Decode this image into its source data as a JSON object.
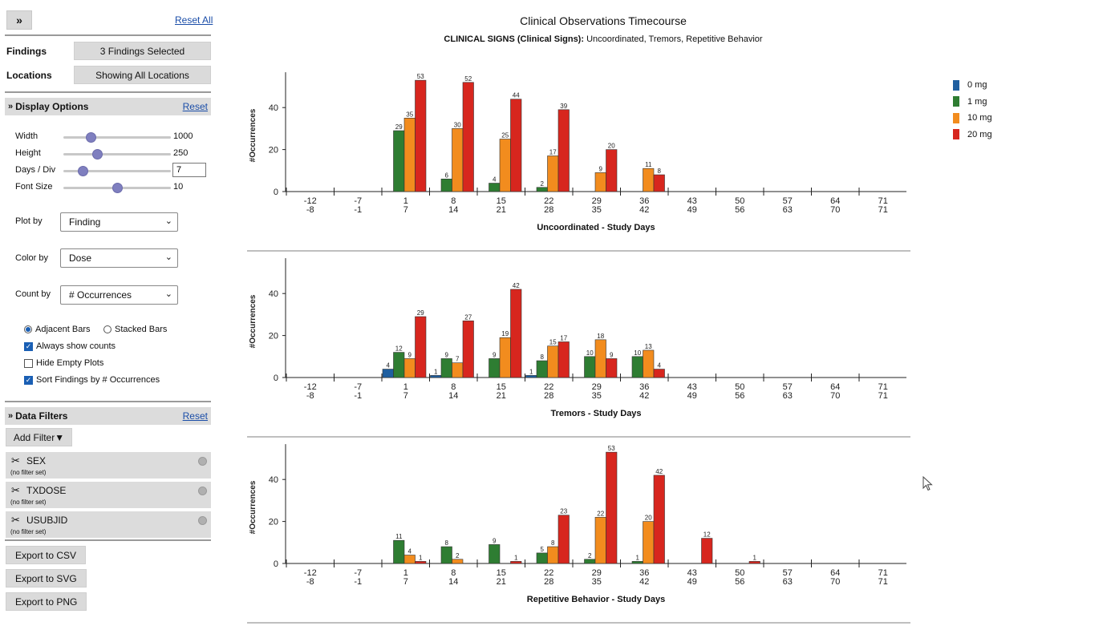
{
  "sidebar": {
    "reset_all": "Reset All",
    "findings_label": "Findings",
    "findings_value": "3 Findings Selected",
    "locations_label": "Locations",
    "locations_value": "Showing All Locations",
    "display_options": {
      "title": "Display Options",
      "reset": "Reset",
      "sliders": [
        {
          "label": "Width",
          "value": "1000",
          "fraction": 0.25
        },
        {
          "label": "Height",
          "value": "250",
          "fraction": 0.31
        },
        {
          "label": "Days / Div",
          "value": "7",
          "fraction": 0.18
        },
        {
          "label": "Font Size",
          "value": "10",
          "fraction": 0.5
        }
      ],
      "plot_by": {
        "label": "Plot by",
        "value": "Finding"
      },
      "color_by": {
        "label": "Color by",
        "value": "Dose"
      },
      "count_by": {
        "label": "Count by",
        "value": "# Occurrences"
      },
      "adjacent_bars": "Adjacent Bars",
      "stacked_bars": "Stacked Bars",
      "always_show_counts": "Always show counts",
      "hide_empty_plots": "Hide Empty Plots",
      "sort_findings": "Sort Findings by # Occurrences"
    },
    "data_filters": {
      "title": "Data Filters",
      "reset": "Reset",
      "add_filter": "Add Filter▼",
      "filters": [
        {
          "name": "SEX",
          "status": "(no filter set)"
        },
        {
          "name": "TXDOSE",
          "status": "(no filter set)"
        },
        {
          "name": "USUBJID",
          "status": "(no filter set)"
        }
      ]
    },
    "export": {
      "csv": "Export to CSV",
      "svg": "Export to SVG",
      "png": "Export to PNG"
    }
  },
  "header": {
    "title": "Clinical Observations Timecourse",
    "subtitle_bold": "CLINICAL SIGNS (Clinical Signs):",
    "subtitle_rest": " Uncoordinated, Tremors, Repetitive Behavior"
  },
  "colors": {
    "0 mg": "#1f5fa0",
    "1 mg": "#2e7d32",
    "10 mg": "#f28c1e",
    "20 mg": "#d7261e"
  },
  "chart_data": [
    {
      "type": "bar",
      "title": "Uncoordinated - Study Days",
      "ylabel": "#Occurrences",
      "ylim": [
        0,
        53
      ],
      "yticks": [
        0,
        20,
        40
      ],
      "categories": [
        "-12 -8",
        "-7 -1",
        "1 7",
        "8 14",
        "15 21",
        "22 28",
        "29 35",
        "36 42",
        "43 49",
        "50 56",
        "57 63",
        "64 70",
        "71 71"
      ],
      "tick_top": [
        "-12",
        "-7",
        "1",
        "8",
        "15",
        "22",
        "29",
        "36",
        "43",
        "50",
        "57",
        "64",
        "71"
      ],
      "tick_bottom": [
        "-8",
        "-1",
        "7",
        "14",
        "21",
        "28",
        "35",
        "42",
        "49",
        "56",
        "63",
        "70",
        "71"
      ],
      "series": [
        {
          "name": "0 mg",
          "values": [
            0,
            0,
            0,
            0,
            0,
            0,
            0,
            0,
            0,
            0,
            0,
            0,
            0
          ]
        },
        {
          "name": "1 mg",
          "values": [
            0,
            0,
            29,
            6,
            4,
            2,
            0,
            0,
            0,
            0,
            0,
            0,
            0
          ]
        },
        {
          "name": "10 mg",
          "values": [
            0,
            0,
            35,
            30,
            25,
            17,
            9,
            11,
            0,
            0,
            0,
            0,
            0
          ]
        },
        {
          "name": "20 mg",
          "values": [
            0,
            0,
            53,
            52,
            44,
            39,
            20,
            8,
            0,
            0,
            0,
            0,
            0
          ]
        }
      ]
    },
    {
      "type": "bar",
      "title": "Tremors - Study Days",
      "ylabel": "#Occurrences",
      "ylim": [
        0,
        53
      ],
      "yticks": [
        0,
        20,
        40
      ],
      "categories": [
        "-12 -8",
        "-7 -1",
        "1 7",
        "8 14",
        "15 21",
        "22 28",
        "29 35",
        "36 42",
        "43 49",
        "50 56",
        "57 63",
        "64 70",
        "71 71"
      ],
      "tick_top": [
        "-12",
        "-7",
        "1",
        "8",
        "15",
        "22",
        "29",
        "36",
        "43",
        "50",
        "57",
        "64",
        "71"
      ],
      "tick_bottom": [
        "-8",
        "-1",
        "7",
        "14",
        "21",
        "28",
        "35",
        "42",
        "49",
        "56",
        "63",
        "70",
        "71"
      ],
      "series": [
        {
          "name": "0 mg",
          "values": [
            0,
            0,
            4,
            1,
            0,
            1,
            0,
            0,
            0,
            0,
            0,
            0,
            0
          ]
        },
        {
          "name": "1 mg",
          "values": [
            0,
            0,
            12,
            9,
            9,
            8,
            10,
            10,
            0,
            0,
            0,
            0,
            0
          ]
        },
        {
          "name": "10 mg",
          "values": [
            0,
            0,
            9,
            7,
            19,
            15,
            18,
            13,
            0,
            0,
            0,
            0,
            0
          ]
        },
        {
          "name": "20 mg",
          "values": [
            0,
            0,
            29,
            27,
            42,
            17,
            9,
            4,
            0,
            0,
            0,
            0,
            0
          ]
        }
      ]
    },
    {
      "type": "bar",
      "title": "Repetitive Behavior - Study Days",
      "ylabel": "#Occurrences",
      "ylim": [
        0,
        53
      ],
      "yticks": [
        0,
        20,
        40
      ],
      "categories": [
        "-12 -8",
        "-7 -1",
        "1 7",
        "8 14",
        "15 21",
        "22 28",
        "29 35",
        "36 42",
        "43 49",
        "50 56",
        "57 63",
        "64 70",
        "71 71"
      ],
      "tick_top": [
        "-12",
        "-7",
        "1",
        "8",
        "15",
        "22",
        "29",
        "36",
        "43",
        "50",
        "57",
        "64",
        "71"
      ],
      "tick_bottom": [
        "-8",
        "-1",
        "7",
        "14",
        "21",
        "28",
        "35",
        "42",
        "49",
        "56",
        "63",
        "70",
        "71"
      ],
      "series": [
        {
          "name": "0 mg",
          "values": [
            0,
            0,
            0,
            0,
            0,
            0,
            0,
            0,
            0,
            0,
            0,
            0,
            0
          ]
        },
        {
          "name": "1 mg",
          "values": [
            0,
            0,
            11,
            8,
            9,
            5,
            2,
            1,
            0,
            0,
            0,
            0,
            0
          ]
        },
        {
          "name": "10 mg",
          "values": [
            0,
            0,
            4,
            2,
            0,
            8,
            22,
            20,
            0,
            0,
            0,
            0,
            0
          ]
        },
        {
          "name": "20 mg",
          "values": [
            0,
            0,
            1,
            0,
            1,
            23,
            53,
            42,
            12,
            1,
            0,
            0,
            0
          ]
        }
      ]
    }
  ]
}
